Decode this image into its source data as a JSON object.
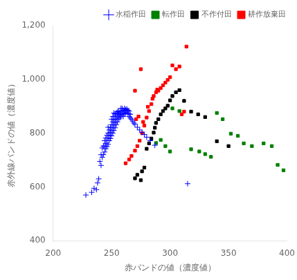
{
  "chart_data": {
    "type": "scatter",
    "xlabel": "赤バンドの値（濃度値）",
    "ylabel": "赤外線バンドの値（濃度値）",
    "xlim": [
      200,
      400
    ],
    "ylim": [
      400,
      1200
    ],
    "xticks": [
      200,
      250,
      300,
      350,
      400
    ],
    "yticks": [
      400,
      600,
      800,
      1000,
      1200
    ],
    "grid": false,
    "legend": "upper right",
    "series": [
      {
        "name": "水稲作田",
        "color": "blue",
        "marker": "plus",
        "x": [
          228,
          233,
          235,
          237,
          238,
          239,
          240,
          241,
          241,
          242,
          242,
          243,
          243,
          244,
          244,
          244,
          245,
          245,
          245,
          246,
          246,
          246,
          247,
          247,
          247,
          247,
          248,
          248,
          248,
          249,
          249,
          249,
          250,
          250,
          250,
          250,
          251,
          251,
          251,
          251,
          252,
          252,
          252,
          252,
          252,
          253,
          253,
          253,
          253,
          254,
          254,
          254,
          254,
          255,
          255,
          255,
          255,
          256,
          256,
          256,
          256,
          257,
          257,
          257,
          258,
          258,
          258,
          258,
          259,
          259,
          259,
          260,
          260,
          260,
          261,
          261,
          261,
          262,
          262,
          263,
          263,
          264,
          264,
          265,
          265,
          265,
          266,
          266,
          267,
          268,
          269,
          270,
          272,
          274,
          276,
          278,
          280,
          283,
          287,
          315
        ],
        "values": [
          570,
          580,
          595,
          590,
          615,
          630,
          695,
          680,
          720,
          710,
          745,
          720,
          752,
          730,
          752,
          772,
          742,
          762,
          782,
          750,
          772,
          792,
          758,
          782,
          800,
          822,
          772,
          792,
          812,
          780,
          802,
          822,
          790,
          810,
          832,
          852,
          800,
          820,
          842,
          862,
          810,
          830,
          850,
          862,
          875,
          820,
          840,
          862,
          872,
          832,
          852,
          862,
          875,
          842,
          862,
          872,
          880,
          852,
          862,
          872,
          882,
          857,
          867,
          877,
          862,
          872,
          882,
          892,
          870,
          882,
          892,
          862,
          872,
          885,
          872,
          882,
          892,
          875,
          888,
          878,
          890,
          872,
          885,
          862,
          872,
          882,
          857,
          870,
          852,
          845,
          838,
          833,
          822,
          812,
          803,
          795,
          785,
          772,
          755,
          612
        ]
      },
      {
        "name": "転作田",
        "color": "green",
        "marker": "square",
        "x": [
          288,
          292,
          296,
          300,
          302,
          308,
          318,
          325,
          330,
          335,
          340,
          345,
          352,
          358,
          363,
          370,
          380,
          387,
          392,
          397
        ],
        "values": [
          763,
          775,
          752,
          732,
          892,
          882,
          740,
          732,
          722,
          712,
          875,
          852,
          798,
          790,
          762,
          752,
          762,
          752,
          682,
          662
        ]
      },
      {
        "name": "不作付田",
        "color": "black",
        "marker": "square",
        "x": [
          270,
          272,
          275,
          276,
          278,
          280,
          282,
          284,
          286,
          287,
          288,
          290,
          292,
          294,
          296,
          298,
          300,
          302,
          305,
          308,
          312,
          318,
          324,
          330,
          340,
          350
        ],
        "values": [
          632,
          645,
          625,
          658,
          672,
          742,
          762,
          780,
          802,
          820,
          838,
          852,
          870,
          882,
          892,
          902,
          922,
          938,
          952,
          960,
          920,
          880,
          870,
          860,
          770,
          752
        ]
      },
      {
        "name": "耕作放棄田",
        "color": "red",
        "marker": "square",
        "x": [
          262,
          265,
          267,
          270,
          272,
          274,
          276,
          278,
          280,
          282,
          284,
          286,
          288,
          289,
          271,
          273,
          277,
          281,
          285,
          290,
          292,
          294,
          296,
          298,
          300,
          270,
          275,
          310,
          312,
          305,
          308,
          302,
          314
        ],
        "values": [
          688,
          702,
          715,
          735,
          752,
          772,
          800,
          828,
          858,
          882,
          908,
          938,
          952,
          962,
          852,
          862,
          842,
          898,
          928,
          958,
          968,
          978,
          988,
          998,
          1008,
          958,
          1038,
          870,
          880,
          1038,
          1048,
          1052,
          1122
        ]
      }
    ]
  }
}
